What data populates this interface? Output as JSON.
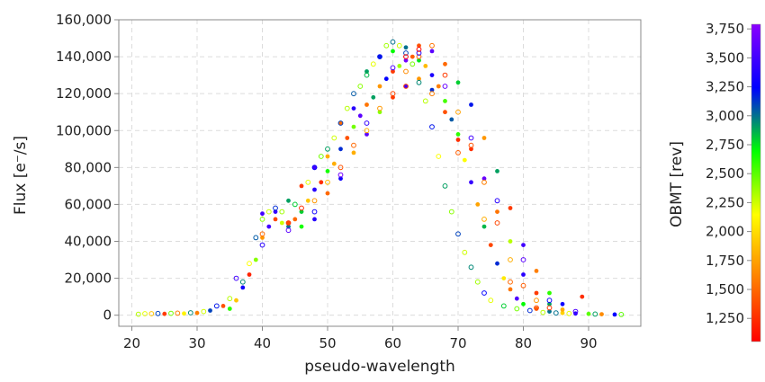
{
  "chart_data": {
    "type": "scatter",
    "xlabel": "pseudo-wavelength",
    "ylabel": "Flux [e⁻/s]",
    "xlim": [
      18,
      98
    ],
    "ylim": [
      -6000,
      160000
    ],
    "x_ticks": [
      20,
      30,
      40,
      50,
      60,
      70,
      80,
      90
    ],
    "x_tick_labels": [
      "20",
      "30",
      "40",
      "50",
      "60",
      "70",
      "80",
      "90"
    ],
    "y_ticks": [
      0,
      20000,
      40000,
      60000,
      80000,
      100000,
      120000,
      140000,
      160000
    ],
    "y_tick_labels": [
      "0",
      "20,000",
      "40,000",
      "60,000",
      "80,000",
      "100,000",
      "120,000",
      "140,000",
      "160,000"
    ],
    "grid": true,
    "colorbar": {
      "label": "OBMT [rev]",
      "range": [
        1050,
        3790
      ],
      "ticks": [
        1250,
        1500,
        1750,
        2000,
        2250,
        2500,
        2750,
        3000,
        3250,
        3500,
        3750
      ],
      "tick_labels": [
        "1,250",
        "1,500",
        "1,750",
        "2,000",
        "2,250",
        "2,500",
        "2,750",
        "3,000",
        "3,250",
        "3,500",
        "3,750"
      ],
      "colormap": [
        "#ff0000",
        "#ff7f00",
        "#ffff00",
        "#00ff00",
        "#0000ff",
        "#8b00ff"
      ]
    },
    "series": [
      {
        "marker": "filled",
        "points": [
          [
            25,
            700,
            1300
          ],
          [
            28,
            900,
            2100
          ],
          [
            30,
            1200,
            1600
          ],
          [
            32,
            2500,
            3100
          ],
          [
            34,
            5000,
            1400
          ],
          [
            35,
            3500,
            2600
          ],
          [
            36,
            8000,
            1900
          ],
          [
            37,
            15000,
            3300
          ],
          [
            38,
            22000,
            1200
          ],
          [
            39,
            30000,
            2400
          ],
          [
            40,
            42000,
            1700
          ],
          [
            41,
            48000,
            3500
          ],
          [
            42,
            52000,
            1350
          ],
          [
            43,
            50000,
            2250
          ],
          [
            44,
            48000,
            3000
          ],
          [
            45,
            52000,
            1500
          ],
          [
            46,
            56000,
            2800
          ],
          [
            47,
            62000,
            1900
          ],
          [
            48,
            68000,
            3400
          ],
          [
            49,
            72000,
            1250
          ],
          [
            50,
            78000,
            2650
          ],
          [
            51,
            82000,
            1800
          ],
          [
            52,
            90000,
            3150
          ],
          [
            53,
            96000,
            1400
          ],
          [
            54,
            102000,
            2450
          ],
          [
            55,
            108000,
            3600
          ],
          [
            56,
            114000,
            1550
          ],
          [
            57,
            118000,
            2900
          ],
          [
            58,
            124000,
            1700
          ],
          [
            59,
            128000,
            3250
          ],
          [
            60,
            132000,
            1300
          ],
          [
            61,
            135000,
            2350
          ],
          [
            62,
            138000,
            3700
          ],
          [
            63,
            140000,
            1450
          ],
          [
            64,
            138000,
            2750
          ],
          [
            65,
            135000,
            1850
          ],
          [
            66,
            130000,
            3350
          ],
          [
            67,
            124000,
            1600
          ],
          [
            68,
            116000,
            2550
          ],
          [
            69,
            106000,
            3050
          ],
          [
            70,
            95000,
            1250
          ],
          [
            71,
            84000,
            2150
          ],
          [
            72,
            72000,
            3450
          ],
          [
            73,
            60000,
            1750
          ],
          [
            74,
            48000,
            2850
          ],
          [
            75,
            38000,
            1350
          ],
          [
            76,
            28000,
            3150
          ],
          [
            77,
            20000,
            2050
          ],
          [
            78,
            14000,
            1550
          ],
          [
            79,
            9000,
            3550
          ],
          [
            80,
            6000,
            2700
          ],
          [
            82,
            3500,
            1450
          ],
          [
            84,
            2000,
            3000
          ],
          [
            86,
            1200,
            1950
          ],
          [
            88,
            900,
            3400
          ],
          [
            89,
            10000,
            1250
          ],
          [
            90,
            700,
            2500
          ],
          [
            92,
            500,
            1650
          ],
          [
            94,
            400,
            3250
          ],
          [
            40,
            55000,
            3500
          ],
          [
            42,
            56000,
            3450
          ],
          [
            44,
            50000,
            1350
          ],
          [
            46,
            48000,
            2650
          ],
          [
            48,
            52000,
            3400
          ],
          [
            50,
            66000,
            1500
          ],
          [
            52,
            74000,
            3300
          ],
          [
            54,
            88000,
            1800
          ],
          [
            56,
            98000,
            3600
          ],
          [
            58,
            110000,
            2400
          ],
          [
            60,
            118000,
            1300
          ],
          [
            62,
            124000,
            3500
          ],
          [
            64,
            128000,
            1700
          ],
          [
            66,
            122000,
            3150
          ],
          [
            68,
            110000,
            1400
          ],
          [
            70,
            98000,
            2600
          ],
          [
            72,
            90000,
            1250
          ],
          [
            74,
            74000,
            3650
          ],
          [
            76,
            56000,
            1550
          ],
          [
            78,
            40000,
            2300
          ],
          [
            80,
            22000,
            3400
          ],
          [
            82,
            12000,
            1300
          ],
          [
            84,
            6000,
            2900
          ],
          [
            86,
            3000,
            1800
          ],
          [
            56,
            132000,
            2900
          ],
          [
            58,
            140000,
            3200
          ],
          [
            60,
            143000,
            2700
          ],
          [
            62,
            145000,
            3000
          ],
          [
            64,
            146000,
            1400
          ],
          [
            66,
            143000,
            3600
          ],
          [
            68,
            136000,
            1500
          ],
          [
            70,
            126000,
            2800
          ],
          [
            72,
            114000,
            3200
          ],
          [
            74,
            96000,
            1700
          ],
          [
            76,
            78000,
            2900
          ],
          [
            78,
            58000,
            1300
          ],
          [
            80,
            38000,
            3500
          ],
          [
            82,
            24000,
            1600
          ],
          [
            84,
            12000,
            2600
          ],
          [
            86,
            6000,
            3300
          ],
          [
            50,
            86000,
            1800
          ],
          [
            48,
            80000,
            3500
          ],
          [
            46,
            70000,
            1300
          ],
          [
            44,
            62000,
            2900
          ],
          [
            54,
            112000,
            3400
          ],
          [
            52,
            104000,
            1500
          ]
        ]
      },
      {
        "marker": "open",
        "points": [
          [
            21,
            500,
            2300
          ],
          [
            22,
            800,
            2200
          ],
          [
            23,
            800,
            1900
          ],
          [
            24,
            900,
            3100
          ],
          [
            26,
            1000,
            2450
          ],
          [
            27,
            1100,
            1600
          ],
          [
            29,
            1300,
            2950
          ],
          [
            31,
            2000,
            2250
          ],
          [
            33,
            5000,
            3200
          ],
          [
            35,
            9000,
            2300
          ],
          [
            37,
            18000,
            2950
          ],
          [
            38,
            28000,
            2150
          ],
          [
            39,
            42000,
            3050
          ],
          [
            40,
            52000,
            2400
          ],
          [
            41,
            56000,
            2250
          ],
          [
            42,
            58000,
            3150
          ],
          [
            43,
            56000,
            2350
          ],
          [
            45,
            60000,
            2800
          ],
          [
            47,
            72000,
            2200
          ],
          [
            48,
            80000,
            3300
          ],
          [
            49,
            86000,
            2450
          ],
          [
            50,
            90000,
            2900
          ],
          [
            51,
            96000,
            2250
          ],
          [
            52,
            104000,
            3100
          ],
          [
            53,
            112000,
            2300
          ],
          [
            54,
            120000,
            3050
          ],
          [
            55,
            124000,
            2400
          ],
          [
            56,
            130000,
            2850
          ],
          [
            57,
            136000,
            2200
          ],
          [
            58,
            140000,
            3200
          ],
          [
            59,
            146000,
            2350
          ],
          [
            60,
            148000,
            3000
          ],
          [
            61,
            146000,
            2250
          ],
          [
            62,
            142000,
            3100
          ],
          [
            63,
            136000,
            2450
          ],
          [
            64,
            126000,
            2950
          ],
          [
            65,
            116000,
            2300
          ],
          [
            66,
            102000,
            3200
          ],
          [
            67,
            86000,
            2150
          ],
          [
            68,
            70000,
            2900
          ],
          [
            69,
            56000,
            2400
          ],
          [
            70,
            44000,
            3100
          ],
          [
            71,
            34000,
            2250
          ],
          [
            72,
            26000,
            2950
          ],
          [
            73,
            18000,
            2350
          ],
          [
            74,
            12000,
            3250
          ],
          [
            75,
            8000,
            2200
          ],
          [
            77,
            5000,
            2800
          ],
          [
            79,
            3500,
            2450
          ],
          [
            81,
            2500,
            3150
          ],
          [
            83,
            1500,
            2300
          ],
          [
            85,
            1200,
            3000
          ],
          [
            87,
            900,
            2200
          ],
          [
            91,
            600,
            2900
          ],
          [
            95,
            400,
            2500
          ],
          [
            40,
            44000,
            1500
          ],
          [
            44,
            50000,
            1300
          ],
          [
            48,
            62000,
            1700
          ],
          [
            52,
            80000,
            1400
          ],
          [
            56,
            100000,
            1800
          ],
          [
            60,
            120000,
            1350
          ],
          [
            62,
            132000,
            1650
          ],
          [
            64,
            140000,
            1450
          ],
          [
            66,
            146000,
            1550
          ],
          [
            68,
            130000,
            1300
          ],
          [
            70,
            110000,
            1750
          ],
          [
            72,
            92000,
            1400
          ],
          [
            74,
            72000,
            1600
          ],
          [
            76,
            50000,
            1350
          ],
          [
            78,
            30000,
            1800
          ],
          [
            80,
            16000,
            1450
          ],
          [
            82,
            8000,
            1700
          ],
          [
            84,
            4000,
            1300
          ],
          [
            46,
            58000,
            1250
          ],
          [
            50,
            72000,
            1850
          ],
          [
            54,
            92000,
            1500
          ],
          [
            58,
            112000,
            1700
          ],
          [
            62,
            124000,
            1350
          ],
          [
            66,
            120000,
            1600
          ],
          [
            70,
            88000,
            1450
          ],
          [
            74,
            52000,
            1800
          ],
          [
            78,
            18000,
            1500
          ],
          [
            82,
            4000,
            1350
          ],
          [
            36,
            20000,
            3500
          ],
          [
            40,
            38000,
            3400
          ],
          [
            44,
            46000,
            3600
          ],
          [
            48,
            56000,
            3300
          ],
          [
            52,
            76000,
            3700
          ],
          [
            56,
            104000,
            3450
          ],
          [
            60,
            134000,
            3550
          ],
          [
            64,
            142000,
            3350
          ],
          [
            68,
            124000,
            3650
          ],
          [
            72,
            96000,
            3500
          ],
          [
            76,
            62000,
            3400
          ],
          [
            80,
            30000,
            3600
          ],
          [
            84,
            8000,
            3300
          ],
          [
            88,
            2000,
            3550
          ],
          [
            62,
            140000,
            1000
          ],
          [
            64,
            144000,
            1000
          ]
        ]
      }
    ]
  }
}
